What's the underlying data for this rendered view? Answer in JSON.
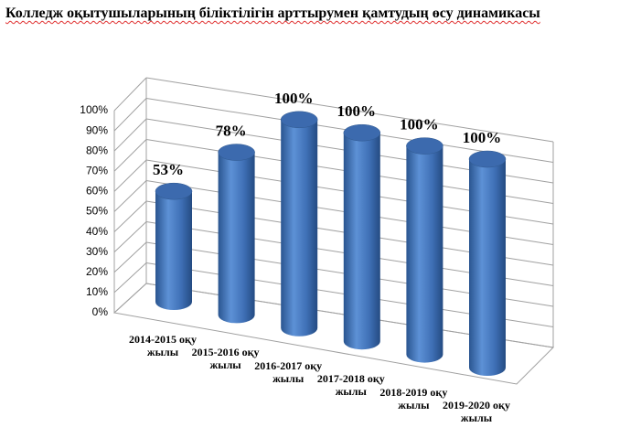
{
  "chart_data": {
    "type": "bar3d",
    "title": "Колледж оқытушыларының біліктілігін арттырумен қамтудың өсу динамикасы",
    "categories": [
      "2014-2015 оқу жылы",
      "2015-2016 оқу жылы",
      "2016-2017 оқу жылы",
      "2017-2018 оқу жылы",
      "2018-2019 оқу жылы",
      "2019-2020 оқу жылы"
    ],
    "values": [
      53,
      78,
      100,
      100,
      100,
      100
    ],
    "value_labels": [
      "53%",
      "78%",
      "100%",
      "100%",
      "100%",
      "100%"
    ],
    "color": "#4a7ec4",
    "ylim": [
      0,
      100
    ],
    "yticks": [
      {
        "value": 0,
        "label": "0%"
      },
      {
        "value": 10,
        "label": "10%"
      },
      {
        "value": 20,
        "label": "20%"
      },
      {
        "value": 30,
        "label": "30%"
      },
      {
        "value": 40,
        "label": "40%"
      },
      {
        "value": 50,
        "label": "50%"
      },
      {
        "value": 60,
        "label": "60%"
      },
      {
        "value": 70,
        "label": "70%"
      },
      {
        "value": 80,
        "label": "80%"
      },
      {
        "value": 90,
        "label": "90%"
      },
      {
        "value": 100,
        "label": "100%"
      }
    ],
    "grid": true
  }
}
